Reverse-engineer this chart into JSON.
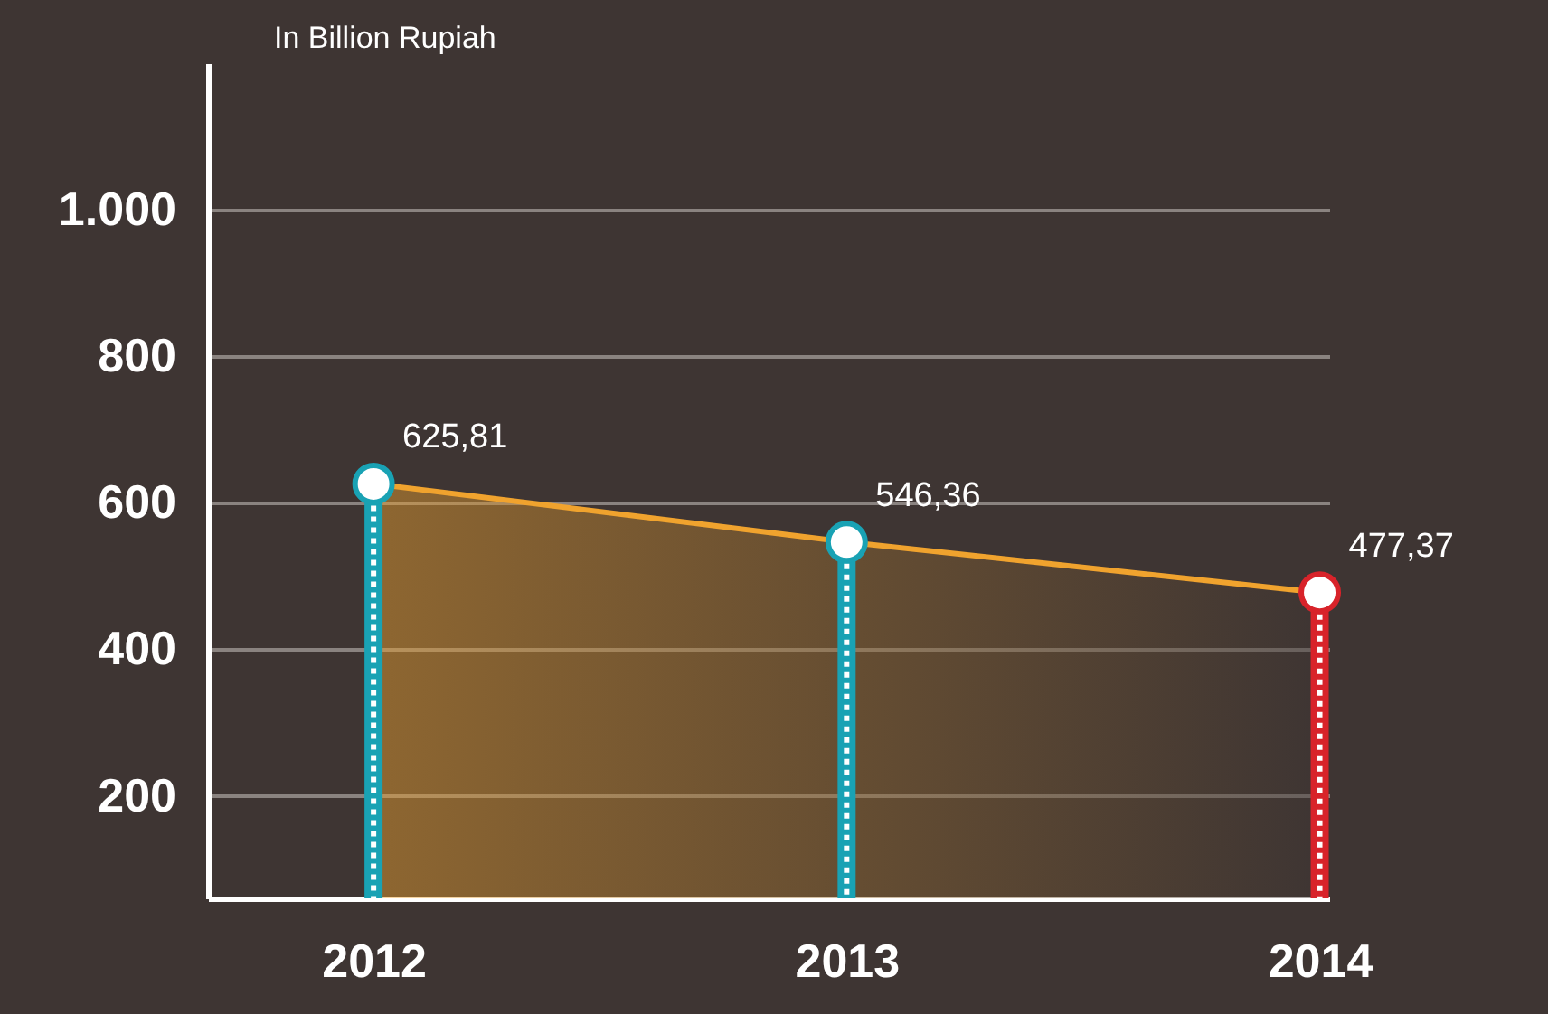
{
  "chart_data": {
    "type": "lollipop",
    "ylabel": "In Billion Rupiah",
    "categories": [
      "2012",
      "2013",
      "2014"
    ],
    "series": [
      {
        "colors": [
          "#19a2b4",
          "#19a2b4",
          "#d8232a"
        ],
        "values": [
          625.81,
          546.36,
          477.37
        ],
        "value_labels": [
          "625,81",
          "546,36",
          "477,37"
        ]
      },
      {
        "type": "area",
        "color": "#f0a32e",
        "values": [
          625.81,
          546.36,
          477.37
        ]
      }
    ],
    "ylim": [
      60,
      1200
    ],
    "yticks": [
      200,
      400,
      600,
      800,
      {
        "value": 1000,
        "label": "1.000"
      }
    ],
    "grid": "y"
  }
}
